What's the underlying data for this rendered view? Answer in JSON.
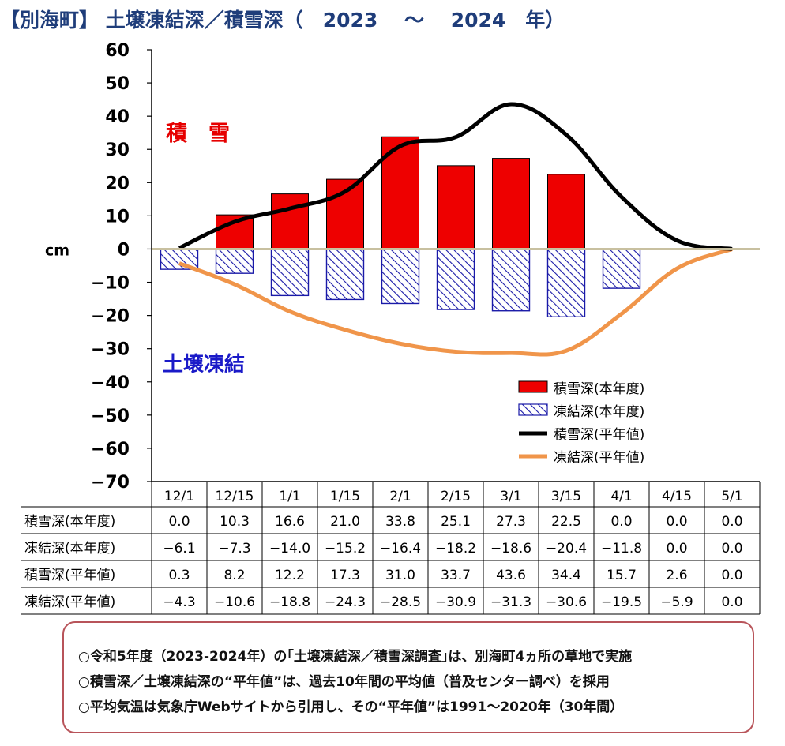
{
  "title": "【別海町】 土壌凍結深／積雪深（　2023　 ～　 2024　年）",
  "annotations": {
    "snow": "積　雪",
    "frost": "土壌凍結"
  },
  "colors": {
    "snow_bar": "#ee0000",
    "frost_bar": "#1a1aa8",
    "snow_avg": "#000000",
    "frost_avg": "#f0954a",
    "snow_text": "#e60000",
    "frost_text": "#1a1ac8",
    "zero_line": "#c8c0a0"
  },
  "chart_data": {
    "type": "bar",
    "unit_label": "cm",
    "ylim": [
      -70,
      60
    ],
    "yticks": [
      "60",
      "50",
      "40",
      "30",
      "20",
      "10",
      "0",
      "-10",
      "-20",
      "-30",
      "-40",
      "-50",
      "-60",
      "-70"
    ],
    "categories": [
      "12/1",
      "12/15",
      "1/1",
      "1/15",
      "2/1",
      "2/15",
      "3/1",
      "3/15",
      "4/1",
      "4/15",
      "5/1"
    ],
    "legend_position": "lower-right",
    "series": [
      {
        "name": "積雪深(本年度)",
        "kind": "bar-solid",
        "values": [
          0.0,
          10.3,
          16.6,
          21.0,
          33.8,
          25.1,
          27.3,
          22.5,
          0.0,
          0.0,
          0.0
        ],
        "labels": [
          "0.0",
          "10.3",
          "16.6",
          "21.0",
          "33.8",
          "25.1",
          "27.3",
          "22.5",
          "0.0",
          "0.0",
          "0.0"
        ]
      },
      {
        "name": "凍結深(本年度)",
        "kind": "bar-hatched",
        "values": [
          -6.1,
          -7.3,
          -14.0,
          -15.2,
          -16.4,
          -18.2,
          -18.6,
          -20.4,
          -11.8,
          0.0,
          0.0
        ],
        "labels": [
          "-6.1",
          "-7.3",
          "-14.0",
          "-15.2",
          "-16.4",
          "-18.2",
          "-18.6",
          "-20.4",
          "-11.8",
          "0.0",
          "0.0"
        ]
      },
      {
        "name": "積雪深(平年値)",
        "kind": "line",
        "values": [
          0.3,
          8.2,
          12.2,
          17.3,
          31.0,
          33.7,
          43.6,
          34.4,
          15.7,
          2.6,
          0.0
        ],
        "labels": [
          "0.3",
          "8.2",
          "12.2",
          "17.3",
          "31.0",
          "33.7",
          "43.6",
          "34.4",
          "15.7",
          "2.6",
          "0.0"
        ]
      },
      {
        "name": "凍結深(平年値)",
        "kind": "line",
        "values": [
          -4.3,
          -10.6,
          -18.8,
          -24.3,
          -28.5,
          -30.9,
          -31.3,
          -30.6,
          -19.5,
          -5.9,
          0.0
        ],
        "labels": [
          "-4.3",
          "-10.6",
          "-18.8",
          "-24.3",
          "-28.5",
          "-30.9",
          "-31.3",
          "-30.6",
          "-19.5",
          "-5.9",
          "0.0"
        ]
      }
    ]
  },
  "notes": [
    "○令和5年度（2023-2024年）の｢土壌凍結深／積雪深調査｣は、別海町4ヵ所の草地で実施",
    "○積雪深／土壌凍結深の“平年値”は、過去10年間の平均値（普及センター調べ）を採用",
    "○平均気温は気象庁Webサイトから引用し、その“平年値”は1991～2020年（30年間）"
  ]
}
